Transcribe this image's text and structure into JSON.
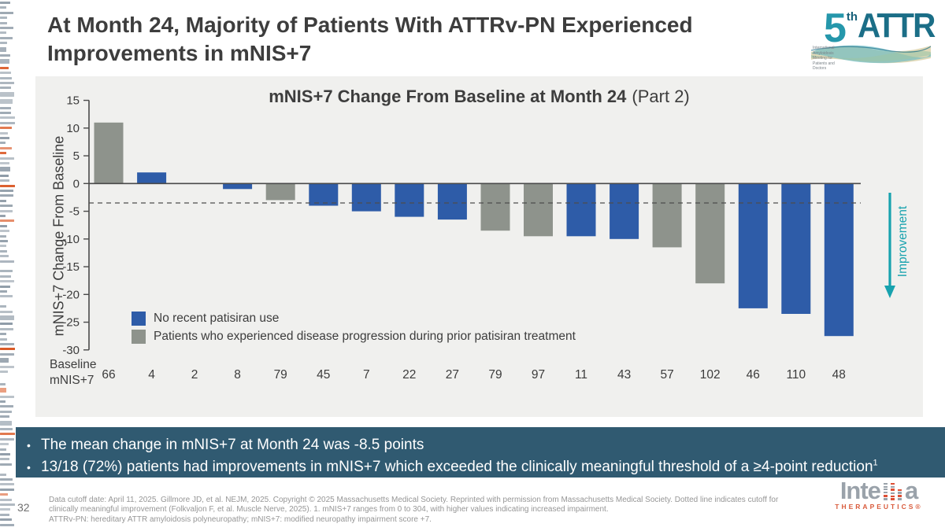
{
  "slide": {
    "title_line1": "At Month 24, Majority of Patients With ATTRv-PN Experienced",
    "title_line2": "Improvements in mNIS+7",
    "page_number": "32"
  },
  "attr_logo": {
    "five": "5",
    "th": "th",
    "attr": "ATTR",
    "tagline": "International Amyloidosis Meeting for Patients and Doctors"
  },
  "chart": {
    "title_bold": "mNIS+7 Change From Baseline at Month 24",
    "title_regular": "(Part 2)",
    "y_axis_label": "mNIS+7 Change From Baseline",
    "improvement_label": "Improvement",
    "baseline_label_line1": "Baseline",
    "baseline_label_line2": "mNIS+7",
    "legend": [
      {
        "label": "No recent patisiran use",
        "color_key": "blue"
      },
      {
        "label": "Patients who experienced disease progression during prior patisiran treatment",
        "color_key": "gray"
      }
    ]
  },
  "chart_data": {
    "type": "bar",
    "title": "mNIS+7 Change From Baseline at Month 24 (Part 2)",
    "xlabel": "Baseline mNIS+7",
    "ylabel": "mNIS+7 Change From Baseline",
    "ylim": [
      -30,
      15
    ],
    "ytick_interval": 5,
    "grid": false,
    "dashed_line_y": -3.5,
    "dashed_line_meaning": "cutoff for clinically meaningful improvement (>=4-point reduction)",
    "categories": [
      "66",
      "4",
      "2",
      "8",
      "79",
      "45",
      "7",
      "22",
      "27",
      "79",
      "97",
      "11",
      "43",
      "57",
      "102",
      "46",
      "110",
      "48"
    ],
    "values": [
      11,
      2,
      0,
      -1,
      -3,
      -4,
      -5,
      -6,
      -6.5,
      -8.5,
      -9.5,
      -9.5,
      -10,
      -11.5,
      -18,
      -22.5,
      -23.5,
      -27.5
    ],
    "bar_colors": [
      "gray",
      "blue",
      "blue",
      "blue",
      "gray",
      "blue",
      "blue",
      "blue",
      "blue",
      "gray",
      "gray",
      "blue",
      "blue",
      "gray",
      "gray",
      "blue",
      "blue",
      "blue"
    ],
    "series_legend": {
      "blue": "No recent patisiran use",
      "gray": "Patients who experienced disease progression during prior patisiran treatment"
    }
  },
  "callout": {
    "bullets": [
      {
        "text": "The mean change in mNIS+7 at Month 24 was -8.5 points",
        "sup": ""
      },
      {
        "text": "13/18 (72%) patients had improvements in mNIS+7 which exceeded the clinically meaningful threshold of a ≥4-point reduction",
        "sup": "1"
      }
    ]
  },
  "footer": {
    "line1": "Data cutoff date: April 11, 2025. Gillmore JD, et al. NEJM, 2025. Copyright © 2025 Massachusetts Medical Society. Reprinted with permission from Massachusetts Medical Society. Dotted line indicates cutoff for",
    "line2": "clinically meaningful improvement (Folkvaljon F, et al. Muscle Nerve, 2025). 1. mNIS+7 ranges from 0 to 304, with higher values indicating increased impairment.",
    "line3": "ATTRv-PN: hereditary ATTR amyloidosis polyneuropathy; mNIS+7: modified neuropathy impairment score +7.",
    "intellia_pre": "Inte",
    "intellia_post": "a",
    "intellia_sub": "THERAPEUTICS®"
  },
  "colors": {
    "blue": "#2e5ca8",
    "gray": "#8e938c",
    "panel_bg": "#f0f0ee",
    "callout_bg": "#305a71",
    "teal_accent": "#17a2ae",
    "axis": "#4a4a4a",
    "strip_gray": "#8e9ba7",
    "strip_orange": "#d9531e",
    "intellia_gray": "#9aa2aa",
    "intellia_red": "#dd4f35"
  }
}
